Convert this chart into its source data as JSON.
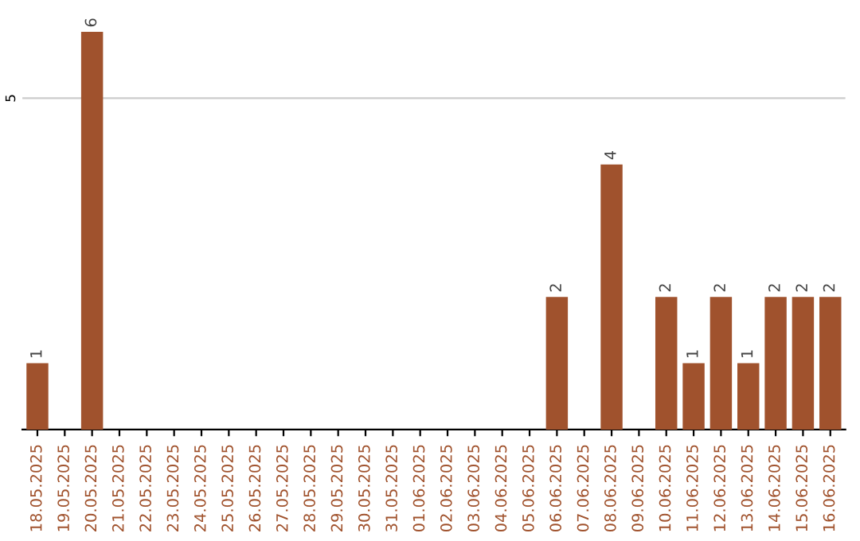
{
  "chart_data": {
    "type": "bar",
    "categories": [
      "18.05.2025",
      "19.05.2025",
      "20.05.2025",
      "21.05.2025",
      "22.05.2025",
      "23.05.2025",
      "24.05.2025",
      "25.05.2025",
      "26.05.2025",
      "27.05.2025",
      "28.05.2025",
      "29.05.2025",
      "30.05.2025",
      "31.05.2025",
      "01.06.2025",
      "02.06.2025",
      "03.06.2025",
      "04.06.2025",
      "05.06.2025",
      "06.06.2025",
      "07.06.2025",
      "08.06.2025",
      "09.06.2025",
      "10.06.2025",
      "11.06.2025",
      "12.06.2025",
      "13.06.2025",
      "14.06.2025",
      "15.06.2025",
      "16.06.2025"
    ],
    "values": [
      1,
      0,
      6,
      0,
      0,
      0,
      0,
      0,
      0,
      0,
      0,
      0,
      0,
      0,
      0,
      0,
      0,
      0,
      0,
      2,
      0,
      4,
      0,
      2,
      1,
      2,
      1,
      2,
      2,
      2
    ],
    "value_labels": [
      "1",
      null,
      "6",
      null,
      null,
      null,
      null,
      null,
      null,
      null,
      null,
      null,
      null,
      null,
      null,
      null,
      null,
      null,
      null,
      "2",
      null,
      "4",
      null,
      "2",
      "1",
      "2",
      "1",
      "2",
      "2",
      "2"
    ],
    "color": "#a0522d",
    "ylim": [
      0,
      6
    ],
    "yticks": [
      5
    ],
    "grid": "y"
  }
}
